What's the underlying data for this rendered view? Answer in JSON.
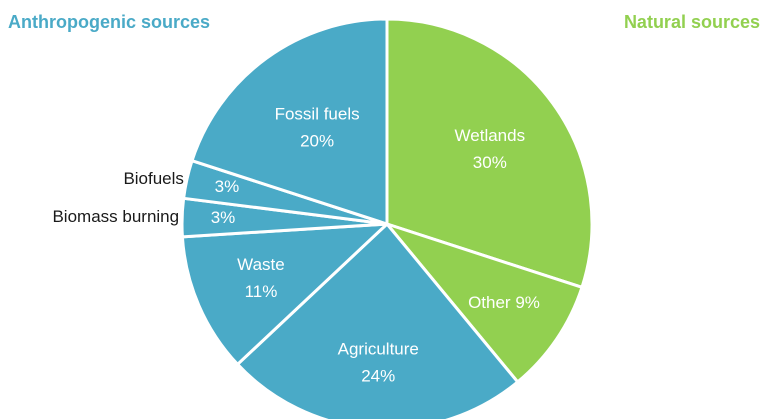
{
  "colors": {
    "anthropogenic": "#4aaac7",
    "natural": "#92d050",
    "border": "#ffffff"
  },
  "chart_data": {
    "type": "pie",
    "groups": [
      {
        "label": "Anthropogenic sources",
        "color": "#4aaac7"
      },
      {
        "label": "Natural sources",
        "color": "#92d050"
      }
    ],
    "slices": [
      {
        "label": "Wetlands",
        "value": 30,
        "value_label": "30%",
        "group": "Natural sources"
      },
      {
        "label": "Other",
        "value": 9,
        "value_label": "9%",
        "group": "Natural sources"
      },
      {
        "label": "Agriculture",
        "value": 24,
        "value_label": "24%",
        "group": "Anthropogenic sources"
      },
      {
        "label": "Waste",
        "value": 11,
        "value_label": "11%",
        "group": "Anthropogenic sources"
      },
      {
        "label": "Biomass burning",
        "value": 3,
        "value_label": "3%",
        "group": "Anthropogenic sources"
      },
      {
        "label": "Biofuels",
        "value": 3,
        "value_label": "3%",
        "group": "Anthropogenic sources"
      },
      {
        "label": "Fossil fuels",
        "value": 20,
        "value_label": "20%",
        "group": "Anthropogenic sources"
      }
    ]
  }
}
